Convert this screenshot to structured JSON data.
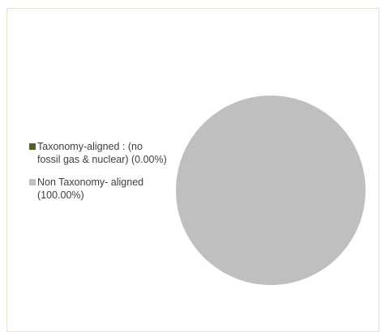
{
  "chart_data": {
    "type": "pie",
    "title": "",
    "slices": [
      {
        "label": "Taxonomy-aligned : (no fossil gas & nuclear) (0.00%)",
        "value": 0.0,
        "color": "#4f6228"
      },
      {
        "label": "Non Taxonomy- aligned (100.00%)",
        "value": 100.0,
        "color": "#bfbfbf"
      }
    ],
    "legend_position": "left"
  }
}
